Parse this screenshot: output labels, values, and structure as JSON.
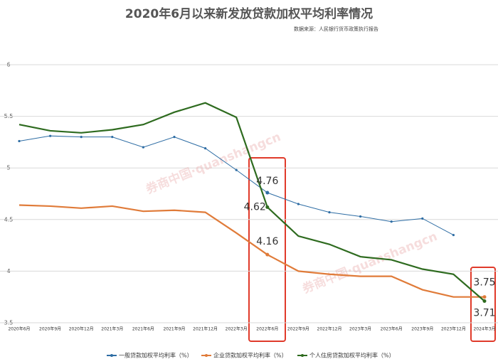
{
  "chart_data": {
    "type": "line",
    "title": "2020年6月以来新发放贷款加权平均利率情况",
    "subtitle": "数据来源：人民银行货币政策执行报告",
    "watermark": "券商中国·quanshangcn",
    "categories": [
      "2020年6月",
      "2020年9月",
      "2020年12月",
      "2021年3月",
      "2021年6月",
      "2021年9月",
      "2021年12月",
      "2022年3月",
      "2022年6月",
      "2022年9月",
      "2022年12月",
      "2023年3月",
      "2023年6月",
      "2023年9月",
      "2023年12月",
      "2024年3月"
    ],
    "series": [
      {
        "name": "一般贷款加权平均利率（%）",
        "color": "#2e6da4",
        "values": [
          5.26,
          5.31,
          5.3,
          5.3,
          5.2,
          5.3,
          5.19,
          4.98,
          4.76,
          4.65,
          4.57,
          4.53,
          4.48,
          4.51,
          4.35,
          null
        ]
      },
      {
        "name": "企业贷款加权平均利率（%）",
        "color": "#e07b39",
        "values": [
          4.64,
          4.63,
          4.61,
          4.63,
          4.58,
          4.59,
          4.57,
          4.37,
          4.16,
          4.0,
          3.97,
          3.95,
          3.95,
          3.82,
          3.75,
          3.75
        ]
      },
      {
        "name": "个人住房贷款加权平均利率（%）",
        "color": "#2e6b1f",
        "values": [
          5.42,
          5.36,
          5.34,
          5.37,
          5.42,
          5.54,
          5.63,
          5.49,
          4.62,
          4.34,
          4.26,
          4.14,
          4.11,
          4.02,
          3.97,
          3.71
        ]
      }
    ],
    "ylim": [
      3.5,
      6
    ],
    "yticks": [
      3.5,
      4,
      4.5,
      5,
      5.5,
      6
    ],
    "grid": true
  }
}
